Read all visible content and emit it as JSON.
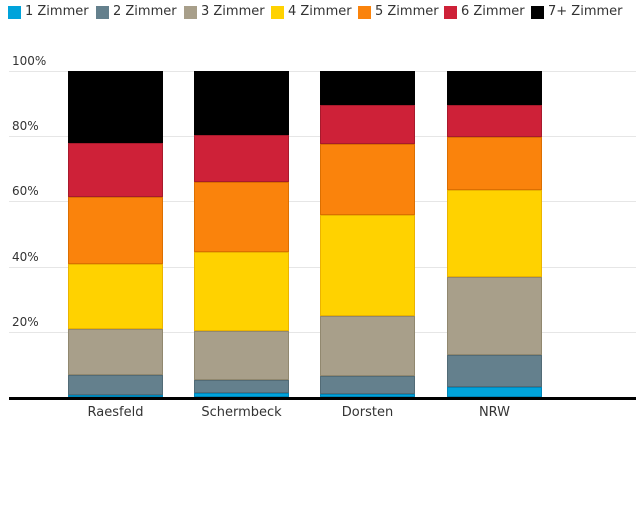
{
  "chart_data": {
    "type": "bar",
    "stacking": "percent",
    "title": "",
    "xlabel": "",
    "ylabel": "",
    "ylim": [
      0,
      100
    ],
    "ytick_labels": [
      "20%",
      "40%",
      "60%",
      "80%",
      "100%"
    ],
    "ytick_values": [
      20,
      40,
      60,
      80,
      100
    ],
    "grid": true,
    "legend_position": "top",
    "categories": [
      "Raesfeld",
      "Schermbeck",
      "Dorsten",
      "NRW"
    ],
    "series": [
      {
        "name": "1 Zimmer",
        "color": "#00a3db",
        "border_color": "#0085b8",
        "values": [
          0.7,
          1.2,
          1.0,
          3.1
        ]
      },
      {
        "name": "2 Zimmer",
        "color": "#64808d",
        "border_color": "#526b76",
        "values": [
          6.1,
          3.9,
          5.4,
          9.9
        ]
      },
      {
        "name": "3 Zimmer",
        "color": "#a89f8a",
        "border_color": "#91886f",
        "values": [
          14.1,
          15.2,
          18.3,
          23.8
        ]
      },
      {
        "name": "4 Zimmer",
        "color": "#ffd200",
        "border_color": "#ebb400",
        "values": [
          19.9,
          24.2,
          31.0,
          26.6
        ]
      },
      {
        "name": "5 Zimmer",
        "color": "#fa830c",
        "border_color": "#dc6f00",
        "values": [
          20.5,
          21.6,
          21.9,
          16.3
        ]
      },
      {
        "name": "6 Zimmer",
        "color": "#ce2138",
        "border_color": "#a81a2c",
        "values": [
          16.6,
          14.3,
          11.9,
          9.8
        ]
      },
      {
        "name": "7+ Zimmer",
        "color": "#000000",
        "border_color": "#000000",
        "values": [
          22.1,
          19.6,
          10.5,
          10.5
        ]
      }
    ],
    "axis_color": "#000000",
    "gridline_color": "#e6e6e6",
    "label_color": "#333333",
    "background_color": "#ffffff"
  }
}
